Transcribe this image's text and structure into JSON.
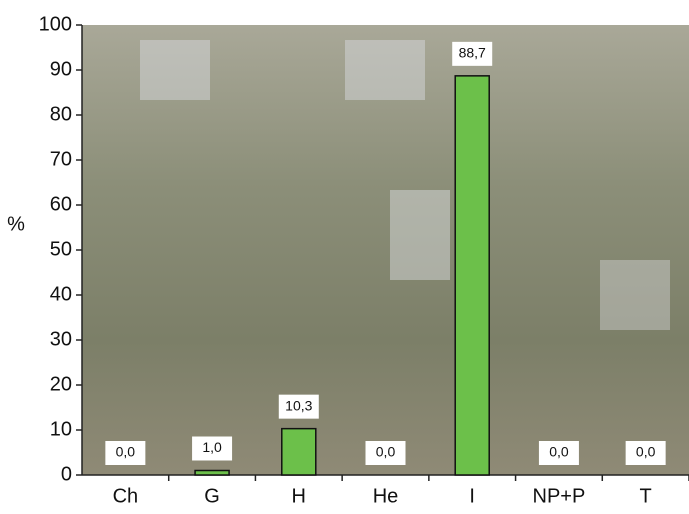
{
  "chart_data": {
    "type": "bar",
    "y_label": "%",
    "categories": [
      "Ch",
      "G",
      "H",
      "He",
      "I",
      "NP+P",
      "T"
    ],
    "values": [
      0,
      1.0,
      10.3,
      0,
      88.7,
      0,
      0
    ],
    "value_labels": [
      "0,0",
      "1,0",
      "10,3",
      "0,0",
      "88,7",
      "0,0",
      "0,0"
    ],
    "color": "#6cc04a",
    "ylim": [
      0,
      100
    ],
    "yticks": [
      0,
      10,
      20,
      30,
      40,
      50,
      60,
      70,
      80,
      90,
      100
    ]
  }
}
